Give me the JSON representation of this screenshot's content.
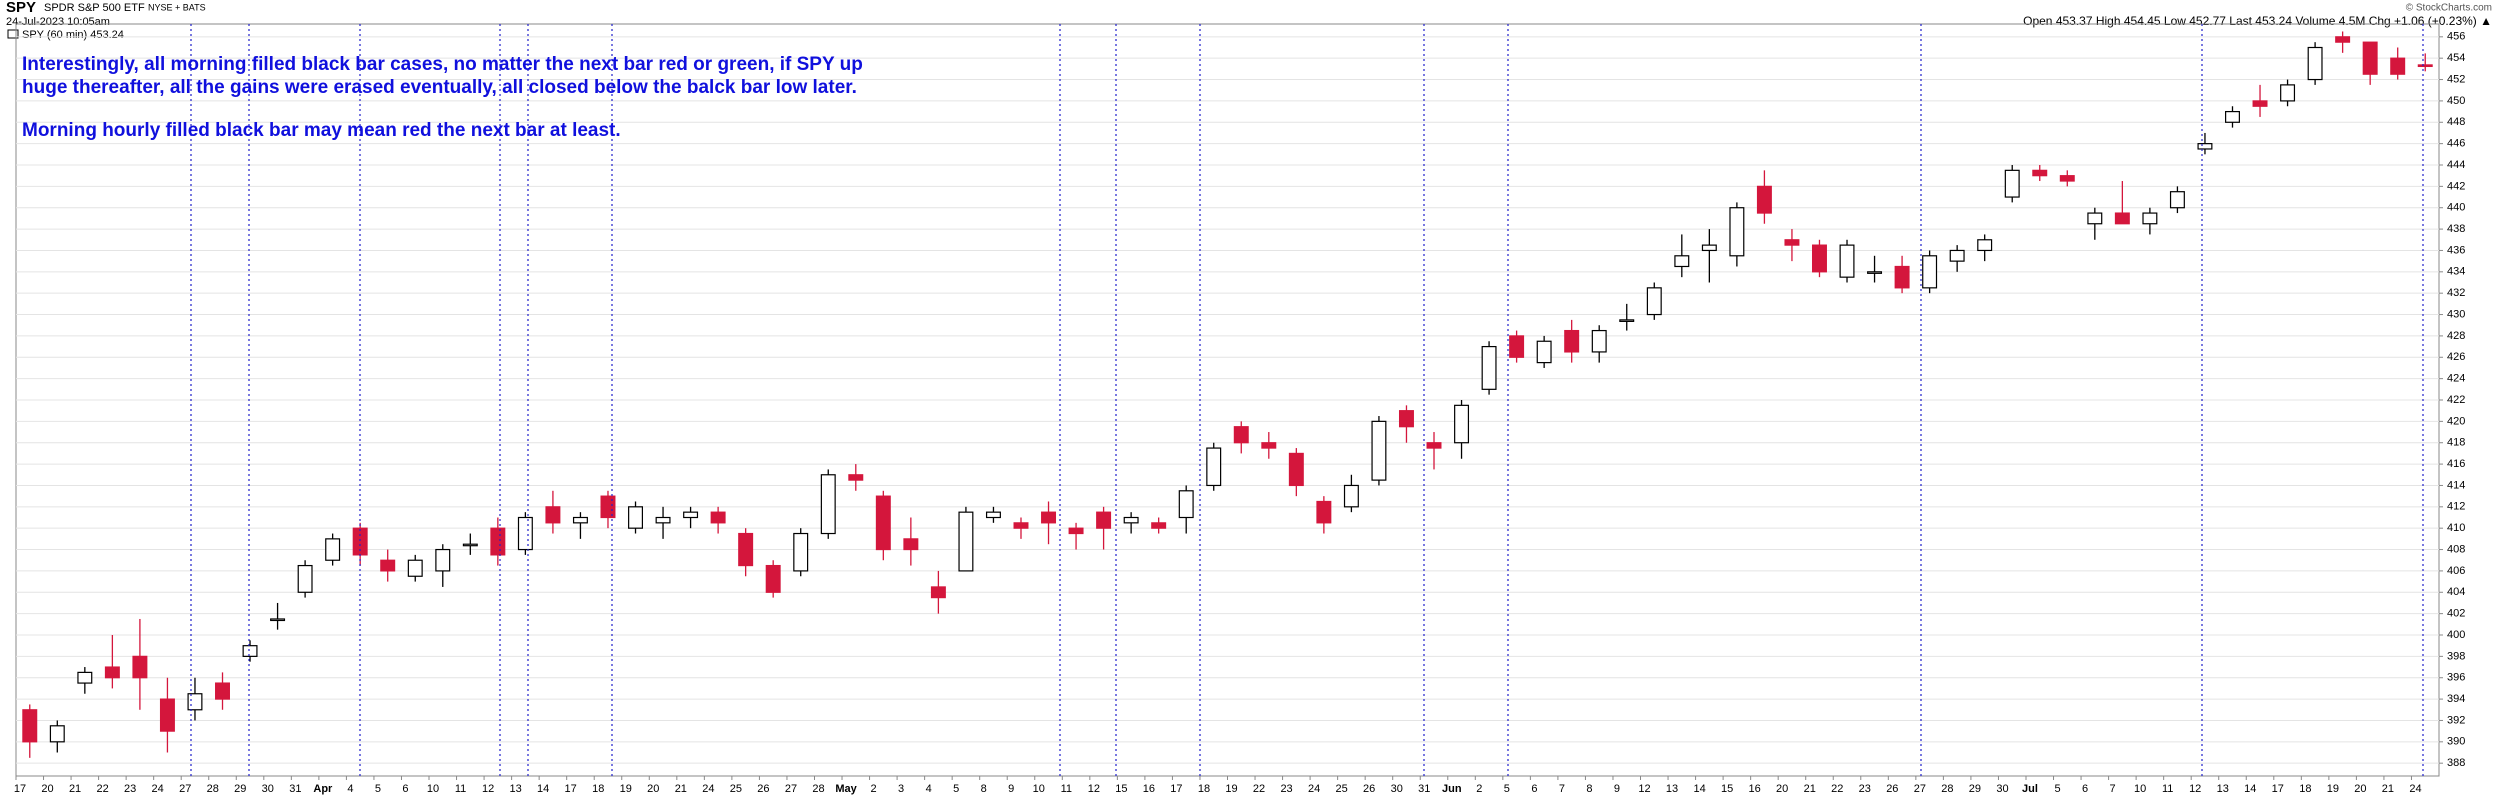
{
  "header": {
    "symbol": "SPY",
    "name": "SPDR S&P 500 ETF",
    "exchange": "NYSE + BATS",
    "timestamp": "24-Jul-2023 10:05am",
    "legend": "SPY (60 min) 453.24",
    "copyright": "© StockCharts.com",
    "stats": "Open 453.37 High 454.45 Low 452.77 Last 453.24 Volume 4.5M Chg +1.06 (+0.23%) ▲"
  },
  "annotations": [
    "Interestingly, all morning filled black bar cases, no matter the next bar red or green, if SPY up",
    "huge thereafter, all the gains were erased eventually, all closed below the balck bar low later.",
    "Morning hourly filled black bar may mean red the next bar at least."
  ],
  "chart_data": {
    "type": "candlestick",
    "up_color": "#000000",
    "down_color": "#d4163c",
    "categories": [
      "17",
      "20",
      "21",
      "22",
      "23",
      "24",
      "27",
      "28",
      "29",
      "30",
      "31",
      "Apr",
      "4",
      "5",
      "6",
      "10",
      "11",
      "12",
      "13",
      "14",
      "17",
      "18",
      "19",
      "20",
      "21",
      "24",
      "25",
      "26",
      "27",
      "28",
      "May",
      "2",
      "3",
      "4",
      "5",
      "8",
      "9",
      "10",
      "11",
      "12",
      "15",
      "16",
      "17",
      "18",
      "19",
      "22",
      "23",
      "24",
      "25",
      "26",
      "30",
      "31",
      "Jun",
      "2",
      "5",
      "6",
      "7",
      "8",
      "9",
      "12",
      "13",
      "14",
      "15",
      "16",
      "20",
      "21",
      "22",
      "23",
      "26",
      "27",
      "28",
      "29",
      "30",
      "Jul",
      "5",
      "6",
      "7",
      "10",
      "11",
      "12",
      "13",
      "14",
      "17",
      "18",
      "19",
      "20",
      "21",
      "24"
    ],
    "open": [
      393,
      390,
      395.5,
      397,
      398,
      394,
      393,
      395.5,
      398,
      401.5,
      404,
      407,
      410,
      407,
      405.5,
      406,
      408.5,
      410,
      408,
      412,
      410.5,
      413,
      410,
      410.5,
      411,
      411.5,
      409.5,
      406.5,
      406,
      409.5,
      415,
      413,
      409,
      404.5,
      406,
      411,
      410.5,
      411.5,
      410,
      411.5,
      410.5,
      410.5,
      411,
      414,
      419.5,
      418,
      417,
      412.5,
      412,
      414.5,
      421,
      418,
      418,
      423,
      428,
      425.5,
      428.5,
      426.5,
      429.5,
      430,
      434.5,
      436,
      435.5,
      442,
      437,
      436.5,
      433.5,
      434,
      434.5,
      432.5,
      435,
      436,
      441,
      443.5,
      443,
      438.5,
      439.5,
      438.5,
      440,
      445.5,
      448,
      450,
      450,
      452,
      456,
      455.5,
      454,
      453.37
    ],
    "high": [
      393.5,
      392,
      397,
      400,
      401.5,
      396,
      396,
      396.5,
      399.5,
      403,
      407,
      409.5,
      410.5,
      408,
      407.5,
      408.5,
      409.5,
      411,
      411.5,
      413.5,
      411.5,
      413.5,
      412.5,
      412,
      412,
      412,
      410,
      407,
      410,
      415.5,
      416,
      413.5,
      411,
      406,
      412,
      412,
      411,
      412.5,
      410.5,
      412,
      411.5,
      411,
      414,
      418,
      420,
      419,
      417.5,
      413,
      415,
      420.5,
      421.5,
      419,
      422,
      427.5,
      428.5,
      428,
      429.5,
      429,
      431,
      433,
      437.5,
      438,
      440.5,
      443.5,
      438,
      437,
      437,
      435.5,
      435.5,
      436,
      436.5,
      437.5,
      444,
      444,
      443.5,
      440,
      442.5,
      440,
      442,
      447,
      449.5,
      451.5,
      452,
      455.5,
      456.5,
      455.5,
      455,
      454.45
    ],
    "low": [
      388.5,
      389,
      394.5,
      395,
      393,
      389,
      392,
      393,
      397.5,
      400.5,
      403.5,
      406.5,
      406.5,
      405,
      405,
      404.5,
      407.5,
      406.5,
      407.5,
      409.5,
      409,
      410,
      409.5,
      409,
      410,
      409.5,
      405.5,
      403.5,
      405.5,
      409,
      413.5,
      407,
      406.5,
      402,
      406,
      410.5,
      409,
      408.5,
      408,
      408,
      409.5,
      409.5,
      409.5,
      413.5,
      417,
      416.5,
      413,
      409.5,
      411.5,
      414,
      418,
      415.5,
      416.5,
      422.5,
      425.5,
      425,
      425.5,
      425.5,
      428.5,
      429.5,
      433.5,
      433,
      434.5,
      438.5,
      435,
      433.5,
      433,
      433,
      432,
      432,
      434,
      435,
      440.5,
      442.5,
      442,
      437,
      438.5,
      437.5,
      439.5,
      445,
      447.5,
      448.5,
      449.5,
      451.5,
      454.5,
      451.5,
      452,
      452.77
    ],
    "close": [
      390,
      391.5,
      396.5,
      396,
      396,
      391,
      394.5,
      394,
      399,
      401.5,
      406.5,
      409,
      407.5,
      406,
      407,
      408,
      408.5,
      407.5,
      411,
      410.5,
      411,
      411,
      412,
      411,
      411.5,
      410.5,
      406.5,
      404,
      409.5,
      415,
      414.5,
      408,
      408,
      403.5,
      411.5,
      411.5,
      410,
      410.5,
      409.5,
      410,
      411,
      410,
      413.5,
      417.5,
      418,
      417.5,
      414,
      410.5,
      414,
      420,
      419.5,
      417.5,
      421.5,
      427,
      426,
      427.5,
      426.5,
      428.5,
      429.5,
      432.5,
      435.5,
      436.5,
      440,
      439.5,
      436.5,
      434,
      436.5,
      434,
      432.5,
      435.5,
      436,
      437,
      443.5,
      443,
      442.5,
      439.5,
      438.5,
      439.5,
      441.5,
      446,
      449,
      449.5,
      451.5,
      455,
      455.5,
      452.5,
      452.5,
      453.24
    ],
    "ylim": [
      386.8,
      457.2
    ],
    "yticks": [
      388,
      390,
      392,
      394,
      396,
      398,
      400,
      402,
      404,
      406,
      408,
      410,
      412,
      414,
      416,
      418,
      420,
      422,
      424,
      426,
      428,
      430,
      432,
      434,
      436,
      438,
      440,
      442,
      444,
      446,
      448,
      450,
      452,
      454,
      456
    ],
    "grid": true
  }
}
